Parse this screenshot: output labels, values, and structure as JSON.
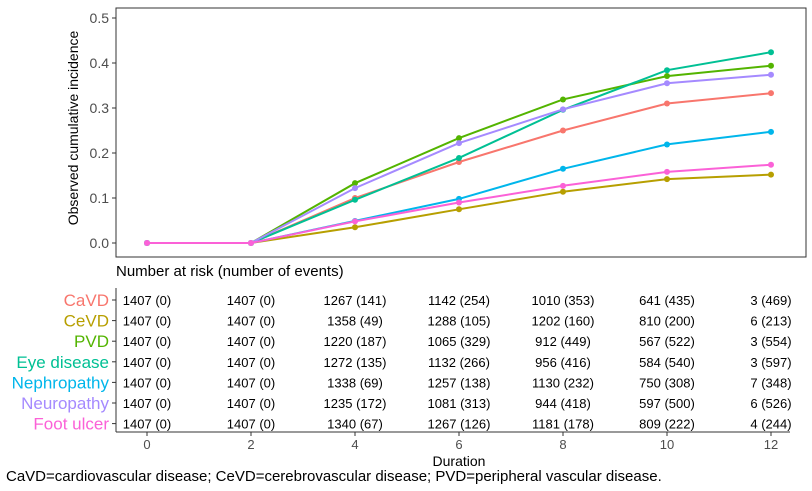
{
  "chart_data": {
    "type": "line",
    "xlabel": "Duration",
    "ylabel": "Observed cumulative incidence",
    "xlim": [
      0,
      12
    ],
    "ylim": [
      0,
      0.5
    ],
    "x_ticks": [
      "0",
      "2",
      "4",
      "6",
      "8",
      "10",
      "12"
    ],
    "y_ticks": [
      "0.0",
      "0.1",
      "0.2",
      "0.3",
      "0.4",
      "0.5"
    ],
    "x": [
      0,
      2,
      4,
      6,
      8,
      10,
      12
    ],
    "series": [
      {
        "name": "CaVD",
        "color": "#F8766D",
        "values": [
          0,
          0,
          0.1,
          0.18,
          0.25,
          0.31,
          0.333
        ]
      },
      {
        "name": "CeVD",
        "color": "#B79F00",
        "values": [
          0,
          0,
          0.035,
          0.075,
          0.114,
          0.142,
          0.152
        ]
      },
      {
        "name": "PVD",
        "color": "#53B400",
        "values": [
          0,
          0,
          0.133,
          0.233,
          0.319,
          0.371,
          0.394
        ]
      },
      {
        "name": "Eye disease",
        "color": "#00C094",
        "values": [
          0,
          0,
          0.096,
          0.189,
          0.296,
          0.384,
          0.424
        ]
      },
      {
        "name": "Nephropathy",
        "color": "#00B6EB",
        "values": [
          0,
          0,
          0.049,
          0.098,
          0.165,
          0.219,
          0.247
        ]
      },
      {
        "name": "Neuropathy",
        "color": "#A58AFF",
        "values": [
          0,
          0,
          0.122,
          0.222,
          0.297,
          0.355,
          0.374
        ]
      },
      {
        "name": "Foot ulcer",
        "color": "#FB61D7",
        "values": [
          0,
          0,
          0.048,
          0.09,
          0.127,
          0.158,
          0.174
        ]
      }
    ],
    "risk_table": {
      "title": "Number at risk (number of events)",
      "rows": [
        {
          "name": "CaVD",
          "cells": [
            "1407 (0)",
            "1407 (0)",
            "1267 (141)",
            "1142 (254)",
            "1010 (353)",
            "641 (435)",
            "3 (469)"
          ]
        },
        {
          "name": "CeVD",
          "cells": [
            "1407 (0)",
            "1407 (0)",
            "1358 (49)",
            "1288 (105)",
            "1202 (160)",
            "810 (200)",
            "6 (213)"
          ]
        },
        {
          "name": "PVD",
          "cells": [
            "1407 (0)",
            "1407 (0)",
            "1220 (187)",
            "1065 (329)",
            "912 (449)",
            "567 (522)",
            "3 (554)"
          ]
        },
        {
          "name": "Eye disease",
          "cells": [
            "1407 (0)",
            "1407 (0)",
            "1272 (135)",
            "1132 (266)",
            "956 (416)",
            "584 (540)",
            "3 (597)"
          ]
        },
        {
          "name": "Nephropathy",
          "cells": [
            "1407 (0)",
            "1407 (0)",
            "1338 (69)",
            "1257 (138)",
            "1130 (232)",
            "750 (308)",
            "7 (348)"
          ]
        },
        {
          "name": "Neuropathy",
          "cells": [
            "1407 (0)",
            "1407 (0)",
            "1235 (172)",
            "1081 (313)",
            "944 (418)",
            "597 (500)",
            "6 (526)"
          ]
        },
        {
          "name": "Foot ulcer",
          "cells": [
            "1407 (0)",
            "1407 (0)",
            "1340 (67)",
            "1267 (126)",
            "1181 (178)",
            "809 (222)",
            "4 (244)"
          ]
        }
      ]
    }
  },
  "footnote": "CaVD=cardiovascular disease; CeVD=cerebrovascular disease; PVD=peripheral vascular disease."
}
